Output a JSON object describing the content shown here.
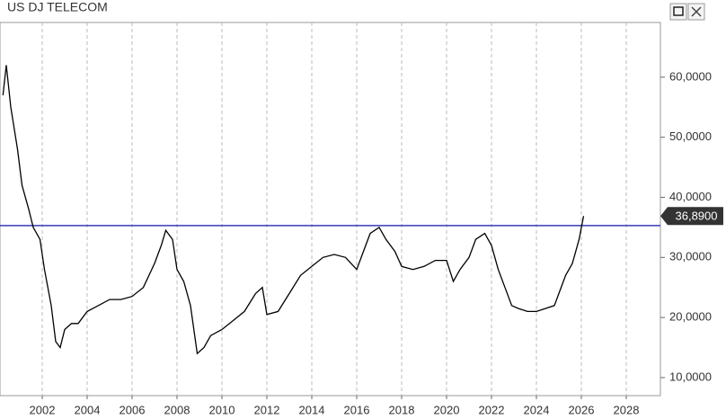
{
  "chart_data": {
    "type": "line",
    "title": "US DJ TELECOM",
    "x": [
      2000.25,
      2000.4,
      2000.6,
      2000.9,
      2001.1,
      2001.4,
      2001.6,
      2001.9,
      2002.1,
      2002.4,
      2002.6,
      2002.8,
      2003.0,
      2003.3,
      2003.6,
      2004.0,
      2004.5,
      2005.0,
      2005.5,
      2006.0,
      2006.5,
      2007.0,
      2007.3,
      2007.5,
      2007.8,
      2008.0,
      2008.3,
      2008.6,
      2008.9,
      2009.2,
      2009.5,
      2010.0,
      2010.5,
      2011.0,
      2011.5,
      2011.8,
      2012.0,
      2012.5,
      2013.0,
      2013.5,
      2014.0,
      2014.5,
      2015.0,
      2015.5,
      2016.0,
      2016.3,
      2016.6,
      2017.0,
      2017.3,
      2017.7,
      2018.0,
      2018.5,
      2019.0,
      2019.5,
      2020.0,
      2020.3,
      2020.6,
      2021.0,
      2021.3,
      2021.7,
      2022.0,
      2022.3,
      2022.6,
      2022.9,
      2023.2,
      2023.6,
      2024.0,
      2024.4,
      2024.8,
      2025.0,
      2025.3,
      2025.6,
      2025.9,
      2026.1
    ],
    "series": [
      {
        "color": "#000000",
        "values": [
          57,
          62,
          55,
          48,
          42,
          38,
          35,
          33,
          28,
          22,
          16,
          15,
          18,
          19,
          19,
          21,
          22,
          23,
          23,
          23.5,
          25,
          29,
          32,
          34.5,
          33,
          28,
          26,
          22,
          14,
          15,
          17,
          18,
          19.5,
          21,
          24,
          25,
          20.5,
          21,
          24,
          27,
          28.5,
          30,
          30.5,
          30,
          28,
          31,
          34,
          35,
          33,
          31,
          28.5,
          28,
          28.5,
          29.5,
          29.5,
          26,
          28,
          30,
          33,
          34,
          32,
          28,
          25,
          22,
          21.5,
          21,
          21,
          21.5,
          22,
          24,
          27,
          29,
          33,
          36.89
        ]
      }
    ],
    "xlim": [
      2000.12,
      2029.52
    ],
    "xticks": [
      2002,
      2004,
      2006,
      2008,
      2010,
      2012,
      2014,
      2016,
      2018,
      2020,
      2022,
      2024,
      2026,
      2028
    ],
    "ylim": [
      7,
      69.1
    ],
    "yticks": [
      {
        "value": 10,
        "label": "10,0000"
      },
      {
        "value": 20,
        "label": "20,0000"
      },
      {
        "value": 30,
        "label": "30,0000"
      },
      {
        "value": 40,
        "label": "40,0000"
      },
      {
        "value": 50,
        "label": "50,0000"
      },
      {
        "value": 60,
        "label": "60,0000"
      }
    ],
    "hline": {
      "value": 35.3,
      "color": "#3a3ab8"
    },
    "last_price": {
      "value": 36.89,
      "label": "36,8900"
    },
    "grid": true
  }
}
